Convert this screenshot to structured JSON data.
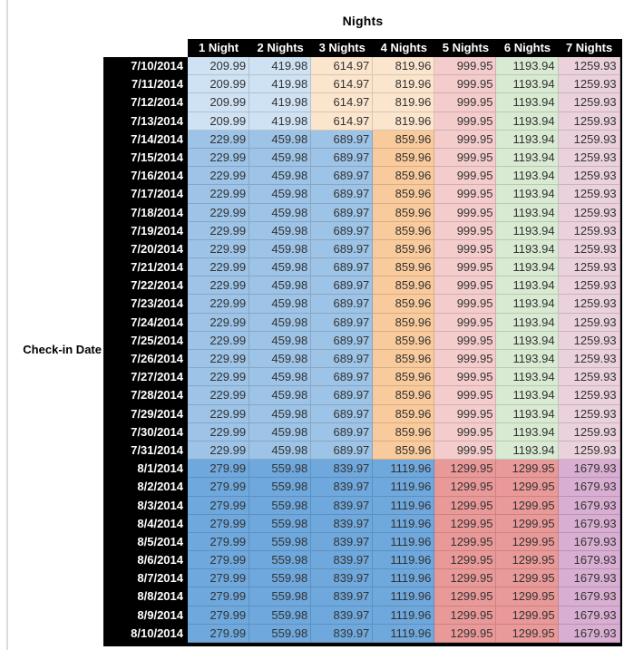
{
  "title": "Nights",
  "row_axis_label": "Check-in Date",
  "colors": {
    "header_bg": "#000000",
    "header_text": "#ffffff",
    "value_text": "#333333",
    "grid_line": "rgba(0,0,0,0.14)",
    "bands": {
      "early_july": [
        "#cfe2f3",
        "#cfe2f3",
        "#fce5cd",
        "#fce5cd",
        "#f4cccc",
        "#d9ead3",
        "#ead1dc"
      ],
      "mid_july": [
        "#9dc3e6",
        "#9dc3e6",
        "#9dc3e6",
        "#f9cb9c",
        "#f4cccc",
        "#d9ead3",
        "#ead1dc"
      ],
      "august": [
        "#6fa8dc",
        "#6fa8dc",
        "#6fa8dc",
        "#6fa8dc",
        "#ea9999",
        "#ea9999",
        "#d8aed2"
      ]
    }
  },
  "chart_data": {
    "type": "table",
    "title": "Nights",
    "row_axis_label": "Check-in Date",
    "columns": [
      "1 Night",
      "2 Nights",
      "3 Nights",
      "4 Nights",
      "5 Nights",
      "6 Nights",
      "7 Nights"
    ],
    "rows": [
      {
        "date": "7/10/2014",
        "band": "early_july",
        "values": [
          "209.99",
          "419.98",
          "614.97",
          "819.96",
          "999.95",
          "1193.94",
          "1259.93"
        ]
      },
      {
        "date": "7/11/2014",
        "band": "early_july",
        "values": [
          "209.99",
          "419.98",
          "614.97",
          "819.96",
          "999.95",
          "1193.94",
          "1259.93"
        ]
      },
      {
        "date": "7/12/2014",
        "band": "early_july",
        "values": [
          "209.99",
          "419.98",
          "614.97",
          "819.96",
          "999.95",
          "1193.94",
          "1259.93"
        ]
      },
      {
        "date": "7/13/2014",
        "band": "early_july",
        "values": [
          "209.99",
          "419.98",
          "614.97",
          "819.96",
          "999.95",
          "1193.94",
          "1259.93"
        ]
      },
      {
        "date": "7/14/2014",
        "band": "mid_july",
        "values": [
          "229.99",
          "459.98",
          "689.97",
          "859.96",
          "999.95",
          "1193.94",
          "1259.93"
        ]
      },
      {
        "date": "7/15/2014",
        "band": "mid_july",
        "values": [
          "229.99",
          "459.98",
          "689.97",
          "859.96",
          "999.95",
          "1193.94",
          "1259.93"
        ]
      },
      {
        "date": "7/16/2014",
        "band": "mid_july",
        "values": [
          "229.99",
          "459.98",
          "689.97",
          "859.96",
          "999.95",
          "1193.94",
          "1259.93"
        ]
      },
      {
        "date": "7/17/2014",
        "band": "mid_july",
        "values": [
          "229.99",
          "459.98",
          "689.97",
          "859.96",
          "999.95",
          "1193.94",
          "1259.93"
        ]
      },
      {
        "date": "7/18/2014",
        "band": "mid_july",
        "values": [
          "229.99",
          "459.98",
          "689.97",
          "859.96",
          "999.95",
          "1193.94",
          "1259.93"
        ]
      },
      {
        "date": "7/19/2014",
        "band": "mid_july",
        "values": [
          "229.99",
          "459.98",
          "689.97",
          "859.96",
          "999.95",
          "1193.94",
          "1259.93"
        ]
      },
      {
        "date": "7/20/2014",
        "band": "mid_july",
        "values": [
          "229.99",
          "459.98",
          "689.97",
          "859.96",
          "999.95",
          "1193.94",
          "1259.93"
        ]
      },
      {
        "date": "7/21/2014",
        "band": "mid_july",
        "values": [
          "229.99",
          "459.98",
          "689.97",
          "859.96",
          "999.95",
          "1193.94",
          "1259.93"
        ]
      },
      {
        "date": "7/22/2014",
        "band": "mid_july",
        "values": [
          "229.99",
          "459.98",
          "689.97",
          "859.96",
          "999.95",
          "1193.94",
          "1259.93"
        ]
      },
      {
        "date": "7/23/2014",
        "band": "mid_july",
        "values": [
          "229.99",
          "459.98",
          "689.97",
          "859.96",
          "999.95",
          "1193.94",
          "1259.93"
        ]
      },
      {
        "date": "7/24/2014",
        "band": "mid_july",
        "values": [
          "229.99",
          "459.98",
          "689.97",
          "859.96",
          "999.95",
          "1193.94",
          "1259.93"
        ]
      },
      {
        "date": "7/25/2014",
        "band": "mid_july",
        "values": [
          "229.99",
          "459.98",
          "689.97",
          "859.96",
          "999.95",
          "1193.94",
          "1259.93"
        ]
      },
      {
        "date": "7/26/2014",
        "band": "mid_july",
        "values": [
          "229.99",
          "459.98",
          "689.97",
          "859.96",
          "999.95",
          "1193.94",
          "1259.93"
        ]
      },
      {
        "date": "7/27/2014",
        "band": "mid_july",
        "values": [
          "229.99",
          "459.98",
          "689.97",
          "859.96",
          "999.95",
          "1193.94",
          "1259.93"
        ]
      },
      {
        "date": "7/28/2014",
        "band": "mid_july",
        "values": [
          "229.99",
          "459.98",
          "689.97",
          "859.96",
          "999.95",
          "1193.94",
          "1259.93"
        ]
      },
      {
        "date": "7/29/2014",
        "band": "mid_july",
        "values": [
          "229.99",
          "459.98",
          "689.97",
          "859.96",
          "999.95",
          "1193.94",
          "1259.93"
        ]
      },
      {
        "date": "7/30/2014",
        "band": "mid_july",
        "values": [
          "229.99",
          "459.98",
          "689.97",
          "859.96",
          "999.95",
          "1193.94",
          "1259.93"
        ]
      },
      {
        "date": "7/31/2014",
        "band": "mid_july",
        "values": [
          "229.99",
          "459.98",
          "689.97",
          "859.96",
          "999.95",
          "1193.94",
          "1259.93"
        ]
      },
      {
        "date": "8/1/2014",
        "band": "august",
        "values": [
          "279.99",
          "559.98",
          "839.97",
          "1119.96",
          "1299.95",
          "1299.95",
          "1679.93"
        ]
      },
      {
        "date": "8/2/2014",
        "band": "august",
        "values": [
          "279.99",
          "559.98",
          "839.97",
          "1119.96",
          "1299.95",
          "1299.95",
          "1679.93"
        ]
      },
      {
        "date": "8/3/2014",
        "band": "august",
        "values": [
          "279.99",
          "559.98",
          "839.97",
          "1119.96",
          "1299.95",
          "1299.95",
          "1679.93"
        ]
      },
      {
        "date": "8/4/2014",
        "band": "august",
        "values": [
          "279.99",
          "559.98",
          "839.97",
          "1119.96",
          "1299.95",
          "1299.95",
          "1679.93"
        ]
      },
      {
        "date": "8/5/2014",
        "band": "august",
        "values": [
          "279.99",
          "559.98",
          "839.97",
          "1119.96",
          "1299.95",
          "1299.95",
          "1679.93"
        ]
      },
      {
        "date": "8/6/2014",
        "band": "august",
        "values": [
          "279.99",
          "559.98",
          "839.97",
          "1119.96",
          "1299.95",
          "1299.95",
          "1679.93"
        ]
      },
      {
        "date": "8/7/2014",
        "band": "august",
        "values": [
          "279.99",
          "559.98",
          "839.97",
          "1119.96",
          "1299.95",
          "1299.95",
          "1679.93"
        ]
      },
      {
        "date": "8/8/2014",
        "band": "august",
        "values": [
          "279.99",
          "559.98",
          "839.97",
          "1119.96",
          "1299.95",
          "1299.95",
          "1679.93"
        ]
      },
      {
        "date": "8/9/2014",
        "band": "august",
        "values": [
          "279.99",
          "559.98",
          "839.97",
          "1119.96",
          "1299.95",
          "1299.95",
          "1679.93"
        ]
      },
      {
        "date": "8/10/2014",
        "band": "august",
        "values": [
          "279.99",
          "559.98",
          "839.97",
          "1119.96",
          "1299.95",
          "1299.95",
          "1679.93"
        ]
      }
    ]
  }
}
